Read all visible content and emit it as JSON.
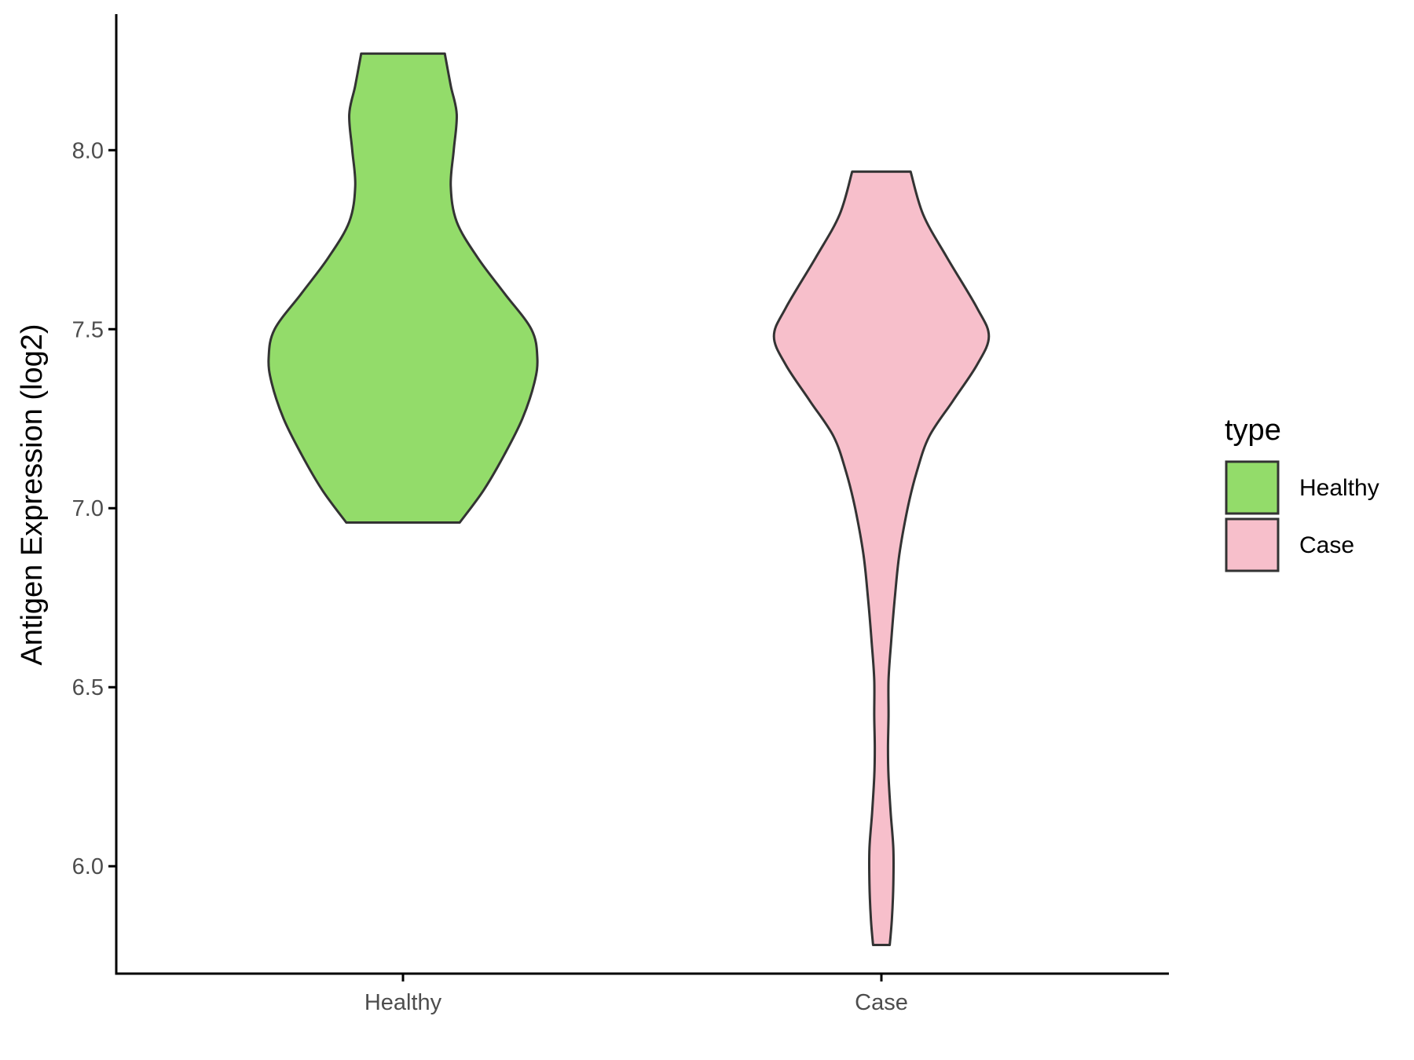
{
  "chart_data": {
    "type": "violin",
    "categories": [
      "Healthy",
      "Case"
    ],
    "series": [
      {
        "name": "Healthy",
        "color": "#93DC6A",
        "min": 6.96,
        "max": 8.27,
        "density": [
          [
            6.96,
            0.19
          ],
          [
            7.05,
            0.27
          ],
          [
            7.15,
            0.34
          ],
          [
            7.25,
            0.4
          ],
          [
            7.35,
            0.44
          ],
          [
            7.42,
            0.45
          ],
          [
            7.5,
            0.43
          ],
          [
            7.6,
            0.34
          ],
          [
            7.7,
            0.25
          ],
          [
            7.8,
            0.18
          ],
          [
            7.9,
            0.16
          ],
          [
            8.0,
            0.17
          ],
          [
            8.1,
            0.18
          ],
          [
            8.18,
            0.16
          ],
          [
            8.27,
            0.14
          ]
        ]
      },
      {
        "name": "Case",
        "color": "#F7BFCB",
        "min": 5.78,
        "max": 7.94,
        "density": [
          [
            5.78,
            0.028
          ],
          [
            5.85,
            0.035
          ],
          [
            5.95,
            0.04
          ],
          [
            6.05,
            0.04
          ],
          [
            6.15,
            0.031
          ],
          [
            6.25,
            0.024
          ],
          [
            6.33,
            0.022
          ],
          [
            6.42,
            0.024
          ],
          [
            6.52,
            0.024
          ],
          [
            6.62,
            0.032
          ],
          [
            6.75,
            0.045
          ],
          [
            6.87,
            0.06
          ],
          [
            7.0,
            0.088
          ],
          [
            7.1,
            0.118
          ],
          [
            7.2,
            0.16
          ],
          [
            7.3,
            0.24
          ],
          [
            7.4,
            0.32
          ],
          [
            7.48,
            0.36
          ],
          [
            7.56,
            0.32
          ],
          [
            7.7,
            0.22
          ],
          [
            7.82,
            0.14
          ],
          [
            7.94,
            0.098
          ]
        ]
      }
    ],
    "ylabel": "Antigen Expression (log2)",
    "xlabel": "",
    "ylim": [
      5.7,
      8.38
    ],
    "yticks": [
      6.0,
      6.5,
      7.0,
      7.5,
      8.0
    ],
    "ytick_labels": [
      "6.0",
      "6.5",
      "7.0",
      "7.5",
      "8.0"
    ],
    "legend": {
      "title": "type",
      "position": "right",
      "items": [
        {
          "label": "Healthy",
          "color": "#93DC6A"
        },
        {
          "label": "Case",
          "color": "#F7BFCB"
        }
      ]
    },
    "grid": false,
    "outline_color": "#333333"
  }
}
